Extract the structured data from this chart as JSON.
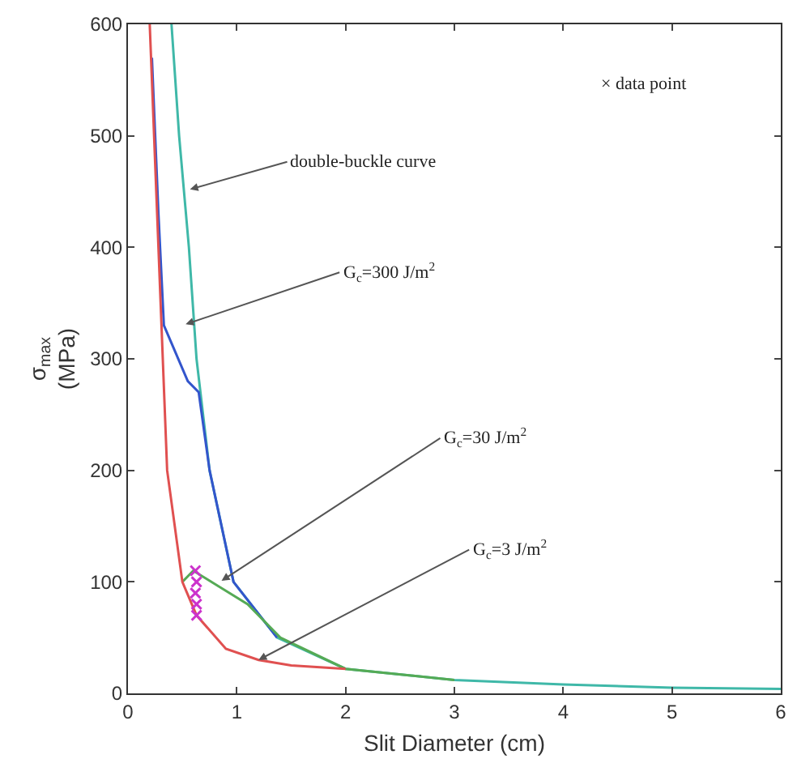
{
  "chart_data": {
    "type": "line",
    "xlabel": "Slit Diameter (cm)",
    "ylabel": "σ$_{max}$\n(MPa)",
    "xlim": [
      0,
      6
    ],
    "xticks": [
      0,
      1,
      2,
      3,
      4,
      5,
      6
    ],
    "ylim": [
      0,
      600
    ],
    "yticks": [
      0,
      100,
      200,
      300,
      400,
      500,
      600
    ],
    "series": [
      {
        "color": "#3fb8a8",
        "x": [
          0.4,
          0.47,
          0.56,
          0.63,
          0.75,
          0.97,
          1.37,
          2,
          3,
          4,
          5,
          6
        ],
        "values": [
          600,
          500,
          400,
          300,
          200,
          100,
          50,
          22,
          12,
          8,
          5,
          4
        ]
      },
      {
        "color": "#3355cc",
        "x": [
          0.22,
          0.25,
          0.28,
          0.33,
          0.55,
          0.65,
          0.75,
          0.97,
          1.37
        ],
        "values": [
          570,
          500,
          430,
          330,
          280,
          270,
          200,
          100,
          50
        ]
      },
      {
        "color": "#55aa55",
        "x": [
          0.5,
          0.6,
          0.85,
          1.1,
          1.4,
          2,
          3
        ],
        "values": [
          100,
          110,
          95,
          80,
          50,
          22,
          12
        ]
      },
      {
        "color": "#e05050",
        "x": [
          0.2,
          0.32,
          0.36,
          0.5,
          0.63,
          0.9,
          1.2,
          1.5,
          2
        ],
        "values": [
          600,
          300,
          200,
          100,
          70,
          40,
          30,
          25,
          22
        ]
      },
      {
        "type": "scatter",
        "marker": "cross",
        "color": "#cc33cc",
        "x": [
          0.62,
          0.63,
          0.62,
          0.63,
          0.63
        ],
        "values": [
          110,
          100,
          90,
          80,
          70
        ]
      }
    ],
    "annotations": [
      {
        "text": "double-buckle curve",
        "x": 0.57,
        "y": 452
      },
      {
        "text": "G$_{c}$=300 J/m$^{2}$",
        "x": 0.53,
        "y": 331
      },
      {
        "text": "G$_{c}$=30 J/m$^{2}$",
        "x": 0.86,
        "y": 101
      },
      {
        "text": "G$_{c}$=3 J/m$^{2}$",
        "x": 1.2,
        "y": 30
      },
      "× data point"
    ]
  }
}
